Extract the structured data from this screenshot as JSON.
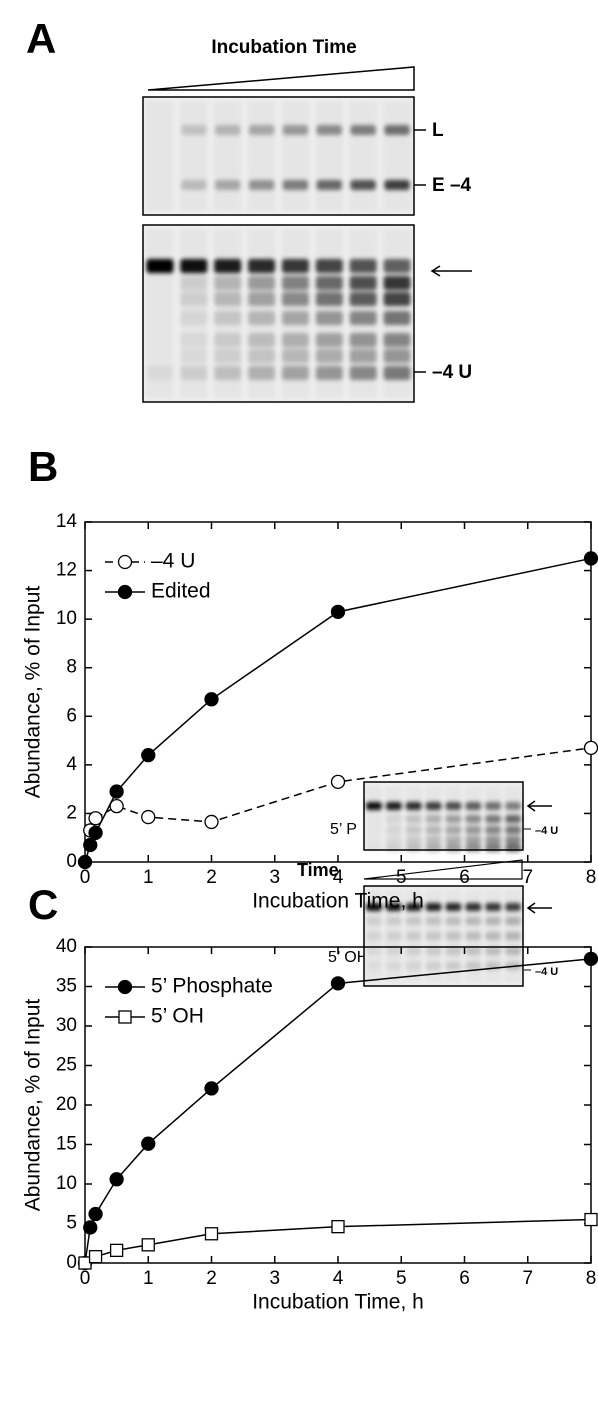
{
  "panel_labels": [
    "A",
    "B",
    "C"
  ],
  "gel": {
    "title": "Incubation Time",
    "band_labels": [
      "L",
      "E –4",
      "–4 U"
    ]
  },
  "inset": {
    "time_label": "Time",
    "rows": [
      {
        "label": "5’ P",
        "band_label": "–4 U"
      },
      {
        "label": "5’ OH",
        "band_label": "–4 U"
      }
    ]
  },
  "chart_data": [
    {
      "type": "line",
      "x_label": "Incubation Time, h",
      "y_label": "Abundance, % of Input",
      "xlim": [
        0,
        8
      ],
      "ylim": [
        0,
        14
      ],
      "xticks": [
        0,
        1,
        2,
        3,
        4,
        5,
        6,
        7,
        8
      ],
      "yticks": [
        0,
        2,
        4,
        6,
        8,
        10,
        12,
        14
      ],
      "legend": "upper left",
      "series": [
        {
          "name": "–4 U",
          "color": "#000000",
          "marker": "open-circle",
          "line_style": "dashed",
          "x": [
            0.083,
            0.167,
            0.5,
            1,
            2,
            4,
            8
          ],
          "values": [
            1.3,
            1.8,
            2.3,
            1.85,
            1.65,
            3.3,
            4.7
          ]
        },
        {
          "name": "Edited",
          "color": "#000000",
          "marker": "filled-circle",
          "line_style": "solid",
          "x": [
            0,
            0.083,
            0.167,
            0.5,
            1,
            2,
            4,
            8
          ],
          "values": [
            0,
            0.7,
            1.2,
            2.9,
            4.4,
            6.7,
            10.3,
            12.5
          ]
        }
      ]
    },
    {
      "type": "line",
      "x_label": "Incubation Time, h",
      "y_label": "Abundance, % of Input",
      "xlim": [
        0,
        8
      ],
      "ylim": [
        0,
        40
      ],
      "xticks": [
        0,
        1,
        2,
        3,
        4,
        5,
        6,
        7,
        8
      ],
      "yticks": [
        0,
        5,
        10,
        15,
        20,
        25,
        30,
        35,
        40
      ],
      "legend": "upper left",
      "series": [
        {
          "name": "5’ Phosphate",
          "color": "#000000",
          "marker": "filled-circle",
          "line_style": "solid",
          "x": [
            0,
            0.083,
            0.167,
            0.5,
            1,
            2,
            4,
            8
          ],
          "values": [
            0,
            4.5,
            6.2,
            10.6,
            15.1,
            22.1,
            35.4,
            38.5
          ]
        },
        {
          "name": "5’ OH",
          "color": "#000000",
          "marker": "open-square",
          "line_style": "solid",
          "x": [
            0,
            0.167,
            0.5,
            1,
            2,
            4,
            8
          ],
          "values": [
            0,
            0.8,
            1.6,
            2.3,
            3.7,
            4.6,
            5.5
          ]
        }
      ]
    }
  ]
}
